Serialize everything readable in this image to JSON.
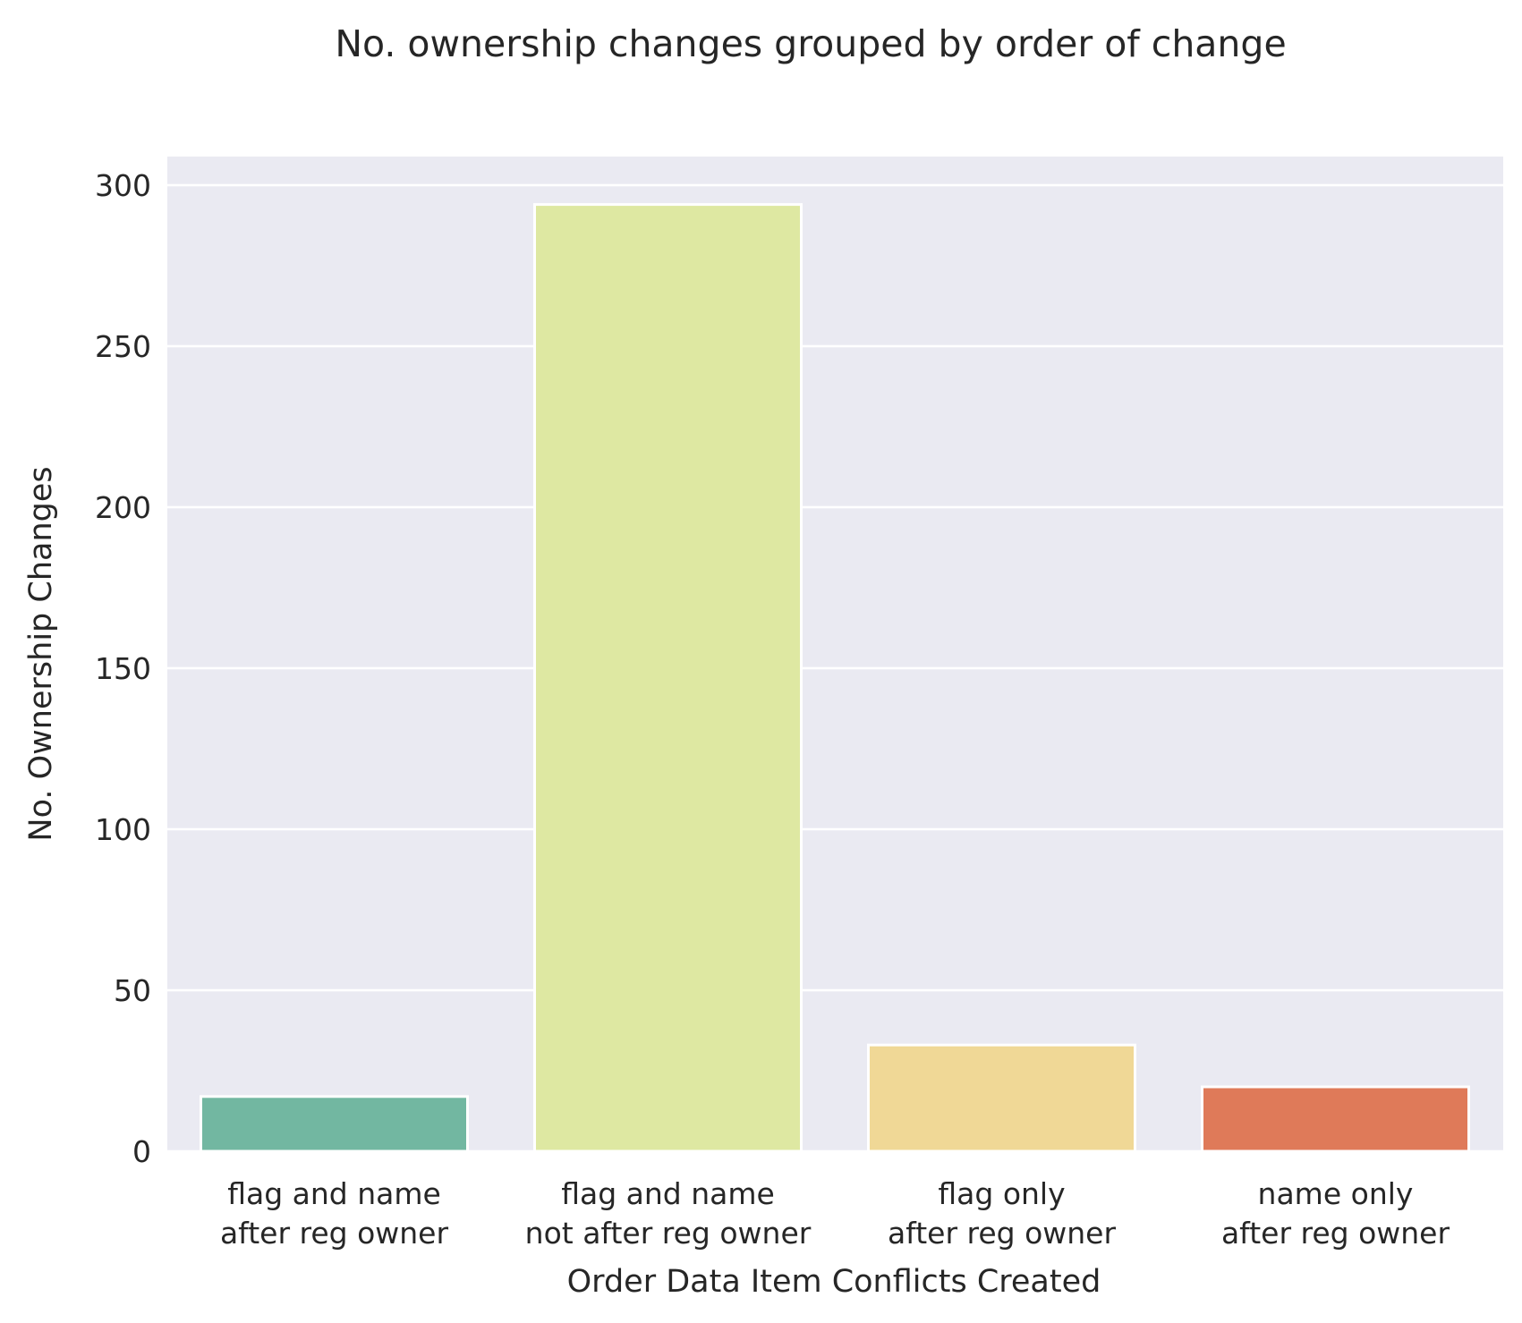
{
  "chart_data": {
    "type": "bar",
    "title": "No. ownership changes grouped by order of change",
    "xlabel": "Order Data Item Conflicts Created",
    "ylabel": "No. Ownership Changes",
    "categories": [
      [
        "flag and name",
        "after reg owner"
      ],
      [
        "flag and name",
        "not after reg owner"
      ],
      [
        "flag only",
        "after reg owner"
      ],
      [
        "name only",
        "after reg owner"
      ]
    ],
    "values": [
      17,
      294,
      33,
      20
    ],
    "colors": [
      "#72b7a1",
      "#dee8a2",
      "#f0d896",
      "#df7a59"
    ],
    "ylim": [
      0,
      308
    ],
    "yticks": [
      0,
      50,
      100,
      150,
      200,
      250,
      300
    ],
    "background": "#eaeaf2",
    "grid": true
  }
}
